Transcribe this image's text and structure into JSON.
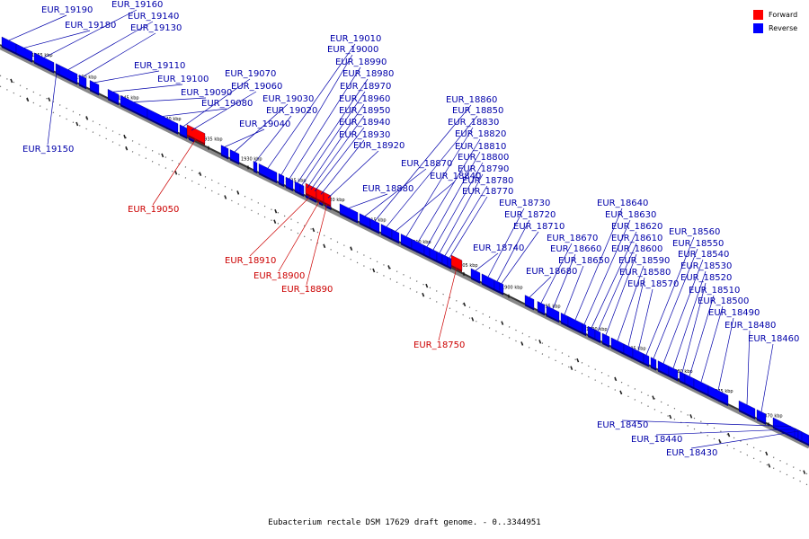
{
  "caption": "Eubacterium rectale DSM 17629 draft genome. - 0..3344951",
  "legend": [
    {
      "label": "Forward",
      "color": "#ff0000"
    },
    {
      "label": "Reverse",
      "color": "#0000ff"
    }
  ],
  "colors": {
    "forward": "#ff0000",
    "reverse": "#0000ff",
    "forward_label": "#cc0000",
    "reverse_label": "#0000aa"
  },
  "ticks": [
    "1955 kbp",
    "1950 kbp",
    "1945 kbp",
    "1940 kbp",
    "1935 kbp",
    "1930 kbp",
    "1925 kbp",
    "1920 kbp",
    "1915 kbp",
    "1910 kbp",
    "1905 kbp",
    "1900 kbp",
    "1895 kbp",
    "1890 kbp",
    "1885 kbp",
    "1880 kbp",
    "1875 kbp",
    "1870 kbp"
  ],
  "genes": [
    {
      "name": "EUR_19190",
      "strand": "reverse"
    },
    {
      "name": "EUR_19180",
      "strand": "reverse"
    },
    {
      "name": "EUR_19160",
      "strand": "reverse"
    },
    {
      "name": "EUR_19150",
      "strand": "reverse"
    },
    {
      "name": "EUR_19140",
      "strand": "reverse"
    },
    {
      "name": "EUR_19130",
      "strand": "reverse"
    },
    {
      "name": "EUR_19110",
      "strand": "reverse"
    },
    {
      "name": "EUR_19100",
      "strand": "reverse"
    },
    {
      "name": "EUR_19090",
      "strand": "reverse"
    },
    {
      "name": "EUR_19080",
      "strand": "reverse"
    },
    {
      "name": "EUR_19070",
      "strand": "reverse"
    },
    {
      "name": "EUR_19060",
      "strand": "reverse"
    },
    {
      "name": "EUR_19050",
      "strand": "forward"
    },
    {
      "name": "EUR_19040",
      "strand": "reverse"
    },
    {
      "name": "EUR_19030",
      "strand": "reverse"
    },
    {
      "name": "EUR_19020",
      "strand": "reverse"
    },
    {
      "name": "EUR_19010",
      "strand": "reverse"
    },
    {
      "name": "EUR_19000",
      "strand": "reverse"
    },
    {
      "name": "EUR_18990",
      "strand": "reverse"
    },
    {
      "name": "EUR_18980",
      "strand": "reverse"
    },
    {
      "name": "EUR_18970",
      "strand": "reverse"
    },
    {
      "name": "EUR_18960",
      "strand": "reverse"
    },
    {
      "name": "EUR_18950",
      "strand": "reverse"
    },
    {
      "name": "EUR_18940",
      "strand": "reverse"
    },
    {
      "name": "EUR_18930",
      "strand": "reverse"
    },
    {
      "name": "EUR_18920",
      "strand": "reverse"
    },
    {
      "name": "EUR_18910",
      "strand": "forward"
    },
    {
      "name": "EUR_18900",
      "strand": "forward"
    },
    {
      "name": "EUR_18890",
      "strand": "forward"
    },
    {
      "name": "EUR_18880",
      "strand": "reverse"
    },
    {
      "name": "EUR_18870",
      "strand": "reverse"
    },
    {
      "name": "EUR_18860",
      "strand": "reverse"
    },
    {
      "name": "EUR_18850",
      "strand": "reverse"
    },
    {
      "name": "EUR_18840",
      "strand": "reverse"
    },
    {
      "name": "EUR_18830",
      "strand": "reverse"
    },
    {
      "name": "EUR_18820",
      "strand": "reverse"
    },
    {
      "name": "EUR_18810",
      "strand": "reverse"
    },
    {
      "name": "EUR_18800",
      "strand": "reverse"
    },
    {
      "name": "EUR_18790",
      "strand": "reverse"
    },
    {
      "name": "EUR_18780",
      "strand": "reverse"
    },
    {
      "name": "EUR_18770",
      "strand": "reverse"
    },
    {
      "name": "EUR_18750",
      "strand": "forward"
    },
    {
      "name": "EUR_18740",
      "strand": "reverse"
    },
    {
      "name": "EUR_18730",
      "strand": "reverse"
    },
    {
      "name": "EUR_18720",
      "strand": "reverse"
    },
    {
      "name": "EUR_18710",
      "strand": "reverse"
    },
    {
      "name": "EUR_18680",
      "strand": "reverse"
    },
    {
      "name": "EUR_18670",
      "strand": "reverse"
    },
    {
      "name": "EUR_18660",
      "strand": "reverse"
    },
    {
      "name": "EUR_18650",
      "strand": "reverse"
    },
    {
      "name": "EUR_18640",
      "strand": "reverse"
    },
    {
      "name": "EUR_18630",
      "strand": "reverse"
    },
    {
      "name": "EUR_18620",
      "strand": "reverse"
    },
    {
      "name": "EUR_18610",
      "strand": "reverse"
    },
    {
      "name": "EUR_18600",
      "strand": "reverse"
    },
    {
      "name": "EUR_18590",
      "strand": "reverse"
    },
    {
      "name": "EUR_18580",
      "strand": "reverse"
    },
    {
      "name": "EUR_18570",
      "strand": "reverse"
    },
    {
      "name": "EUR_18560",
      "strand": "reverse"
    },
    {
      "name": "EUR_18550",
      "strand": "reverse"
    },
    {
      "name": "EUR_18540",
      "strand": "reverse"
    },
    {
      "name": "EUR_18530",
      "strand": "reverse"
    },
    {
      "name": "EUR_18520",
      "strand": "reverse"
    },
    {
      "name": "EUR_18510",
      "strand": "reverse"
    },
    {
      "name": "EUR_18500",
      "strand": "reverse"
    },
    {
      "name": "EUR_18490",
      "strand": "reverse"
    },
    {
      "name": "EUR_18480",
      "strand": "reverse"
    },
    {
      "name": "EUR_18460",
      "strand": "reverse"
    },
    {
      "name": "EUR_18450",
      "strand": "reverse"
    },
    {
      "name": "EUR_18440",
      "strand": "reverse"
    },
    {
      "name": "EUR_18430",
      "strand": "reverse"
    }
  ]
}
